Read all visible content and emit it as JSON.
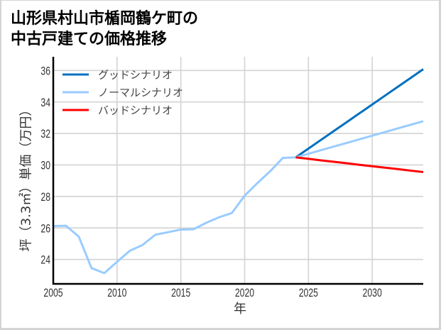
{
  "chart_data": {
    "type": "line",
    "title": "山形県村山市楯岡鶴ケ町の中古戸建ての価格推移",
    "title_lines": [
      "山形県村山市楯岡鶴ケ町の",
      "中古戸建ての価格推移"
    ],
    "xlabel": "年",
    "ylabel": "坪（3.3㎡）単価（万円）",
    "xlim": [
      2005,
      2034
    ],
    "ylim": [
      22.45,
      36.87
    ],
    "xticks": [
      2005,
      2010,
      2015,
      2020,
      2025,
      2030
    ],
    "xtick_labels": [
      "2005",
      "2010",
      "2015",
      "2020",
      "2025",
      "2030"
    ],
    "yticks": [
      24,
      26,
      28,
      30,
      32,
      34,
      36
    ],
    "ytick_labels": [
      "24",
      "26",
      "28",
      "30",
      "32",
      "34",
      "36"
    ],
    "grid": true,
    "legend_position": "upper left",
    "legend": [
      {
        "label": "グッドシナリオ",
        "color": "#0070c0"
      },
      {
        "label": "ノーマルシナリオ",
        "color": "#99ccff"
      },
      {
        "label": "バッドシナリオ",
        "color": "#ff0000"
      }
    ],
    "series": [
      {
        "id": "good",
        "name": "グッドシナリオ",
        "color": "#0070c0",
        "x": [
          2024,
          2025,
          2026,
          2027,
          2028,
          2029,
          2030,
          2031,
          2032,
          2033,
          2034
        ],
        "y": [
          30.48,
          31.04,
          31.6,
          32.16,
          32.72,
          33.28,
          33.84,
          34.4,
          34.96,
          35.52,
          36.08
        ]
      },
      {
        "id": "normal",
        "name": "ノーマルシナリオ",
        "color": "#99ccff",
        "x": [
          2024,
          2025,
          2026,
          2027,
          2028,
          2029,
          2030,
          2031,
          2032,
          2033,
          2034
        ],
        "y": [
          30.48,
          30.71,
          30.94,
          31.17,
          31.4,
          31.63,
          31.86,
          32.09,
          32.32,
          32.55,
          32.78
        ]
      },
      {
        "id": "bad",
        "name": "バッドシナリオ",
        "color": "#ff0000",
        "x": [
          2024,
          2025,
          2026,
          2027,
          2028,
          2029,
          2030,
          2031,
          2032,
          2033,
          2034
        ],
        "y": [
          30.48,
          30.39,
          30.29,
          30.2,
          30.11,
          30.01,
          29.92,
          29.83,
          29.74,
          29.64,
          29.55
        ]
      },
      {
        "id": "historical",
        "name": "",
        "in_legend": false,
        "color": "#99ccff",
        "x": [
          2005,
          2006,
          2007,
          2008,
          2009,
          2010,
          2011,
          2012,
          2013,
          2014,
          2015,
          2016,
          2017,
          2018,
          2019,
          2020,
          2021,
          2022,
          2023,
          2024
        ],
        "y": [
          26.12,
          26.14,
          25.45,
          23.45,
          23.13,
          23.85,
          24.55,
          24.92,
          25.57,
          25.73,
          25.9,
          25.92,
          26.33,
          26.68,
          26.95,
          28.05,
          28.85,
          29.6,
          30.45,
          30.48
        ]
      }
    ]
  }
}
